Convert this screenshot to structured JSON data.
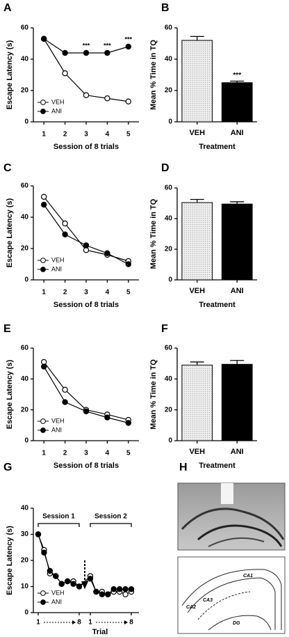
{
  "chart_data": [
    {
      "type": "line",
      "panel": "A",
      "x_label": "Session of 8 trials",
      "y_label": "Escape Latency (s)",
      "x": [
        1,
        2,
        3,
        4,
        5
      ],
      "xlim": [
        0.5,
        5.5
      ],
      "xticks": [
        1,
        2,
        3,
        4,
        5
      ],
      "ylim": [
        0,
        60
      ],
      "yticks": [
        0,
        20,
        40,
        60
      ],
      "series": [
        {
          "name": "VEH",
          "color": "#ffffff",
          "values": [
            53,
            31,
            17,
            15,
            13
          ]
        },
        {
          "name": "ANI",
          "color": "#000000",
          "values": [
            53,
            44,
            44,
            44,
            48
          ]
        }
      ],
      "annotations": [
        {
          "text": "***",
          "x": 3
        },
        {
          "text": "***",
          "x": 4
        },
        {
          "text": "***",
          "x": 5
        }
      ],
      "legend": "lower left"
    },
    {
      "type": "bar",
      "panel": "B",
      "x_label": "Treatment",
      "y_label": "Mean % Time in TQ",
      "categories": [
        "VEH",
        "ANI"
      ],
      "values": [
        52,
        25
      ],
      "errors": [
        2.5,
        1
      ],
      "colors": [
        "#e4e4e4",
        "#000000"
      ],
      "ylim": [
        0,
        60
      ],
      "yticks": [
        0,
        20,
        40,
        60
      ],
      "annotations": [
        {
          "text": "***",
          "category": "ANI"
        }
      ]
    },
    {
      "type": "line",
      "panel": "C",
      "x_label": "Session of 8 trials",
      "y_label": "Escape Latency (s)",
      "x": [
        1,
        2,
        3,
        4,
        5
      ],
      "xlim": [
        0.5,
        5.5
      ],
      "xticks": [
        1,
        2,
        3,
        4,
        5
      ],
      "ylim": [
        0,
        60
      ],
      "yticks": [
        0,
        20,
        40,
        60
      ],
      "series": [
        {
          "name": "VEH",
          "color": "#ffffff",
          "values": [
            53,
            36,
            19,
            16,
            12
          ]
        },
        {
          "name": "ANI",
          "color": "#000000",
          "values": [
            48,
            29,
            22,
            17,
            10
          ]
        }
      ],
      "legend": "lower left"
    },
    {
      "type": "bar",
      "panel": "D",
      "x_label": "Treatment",
      "y_label": "Mean % Time in TQ",
      "categories": [
        "VEH",
        "ANI"
      ],
      "values": [
        50.5,
        49.5
      ],
      "errors": [
        2,
        1.5
      ],
      "colors": [
        "#e4e4e4",
        "#000000"
      ],
      "ylim": [
        0,
        60
      ],
      "yticks": [
        0,
        20,
        40,
        60
      ]
    },
    {
      "type": "line",
      "panel": "E",
      "x_label": "Session of 8 trials",
      "y_label": "Escape Latency (s)",
      "x": [
        1,
        2,
        3,
        4,
        5
      ],
      "xlim": [
        0.5,
        5.5
      ],
      "xticks": [
        1,
        2,
        3,
        4,
        5
      ],
      "ylim": [
        0,
        60
      ],
      "yticks": [
        0,
        20,
        40,
        60
      ],
      "series": [
        {
          "name": "VEH",
          "color": "#ffffff",
          "values": [
            51,
            33,
            20,
            17,
            13.5
          ]
        },
        {
          "name": "ANI",
          "color": "#000000",
          "values": [
            48,
            25,
            19,
            15,
            11.5
          ]
        }
      ],
      "legend": "lower left"
    },
    {
      "type": "bar",
      "panel": "F",
      "x_label": "Treatment",
      "y_label": "Mean % Time in TQ",
      "categories": [
        "VEH",
        "ANI"
      ],
      "values": [
        49,
        49.5
      ],
      "errors": [
        2,
        2.5
      ],
      "colors": [
        "#e4e4e4",
        "#000000"
      ],
      "ylim": [
        0,
        60
      ],
      "yticks": [
        0,
        20,
        40,
        60
      ]
    },
    {
      "type": "line",
      "panel": "G",
      "x_label": "Trial",
      "y_label": "Escape Latency (s)",
      "categories": [
        "1",
        null,
        null,
        null,
        null,
        null,
        null,
        "8",
        "1",
        null,
        null,
        null,
        null,
        null,
        null,
        "8"
      ],
      "groups": [
        {
          "label": "Session 1"
        },
        {
          "label": "Session 2"
        }
      ],
      "ylim": [
        0,
        40
      ],
      "yticks": [
        0,
        10,
        20,
        30,
        40
      ],
      "series": [
        {
          "name": "VEH",
          "color": "#ffffff",
          "values": [
            30,
            24,
            15,
            14,
            11,
            12,
            12,
            10,
            14,
            8,
            8,
            7,
            8,
            8,
            7,
            8
          ]
        },
        {
          "name": "ANI",
          "color": "#000000",
          "values": [
            30,
            23,
            16,
            14,
            11,
            12,
            11,
            10,
            13,
            8,
            7,
            7,
            9,
            9,
            9,
            9
          ]
        }
      ],
      "legend": "lower left"
    }
  ],
  "panel_H": {
    "panel": "H",
    "labels": [
      "CA1",
      "CA2",
      "CA3",
      "DG"
    ]
  }
}
